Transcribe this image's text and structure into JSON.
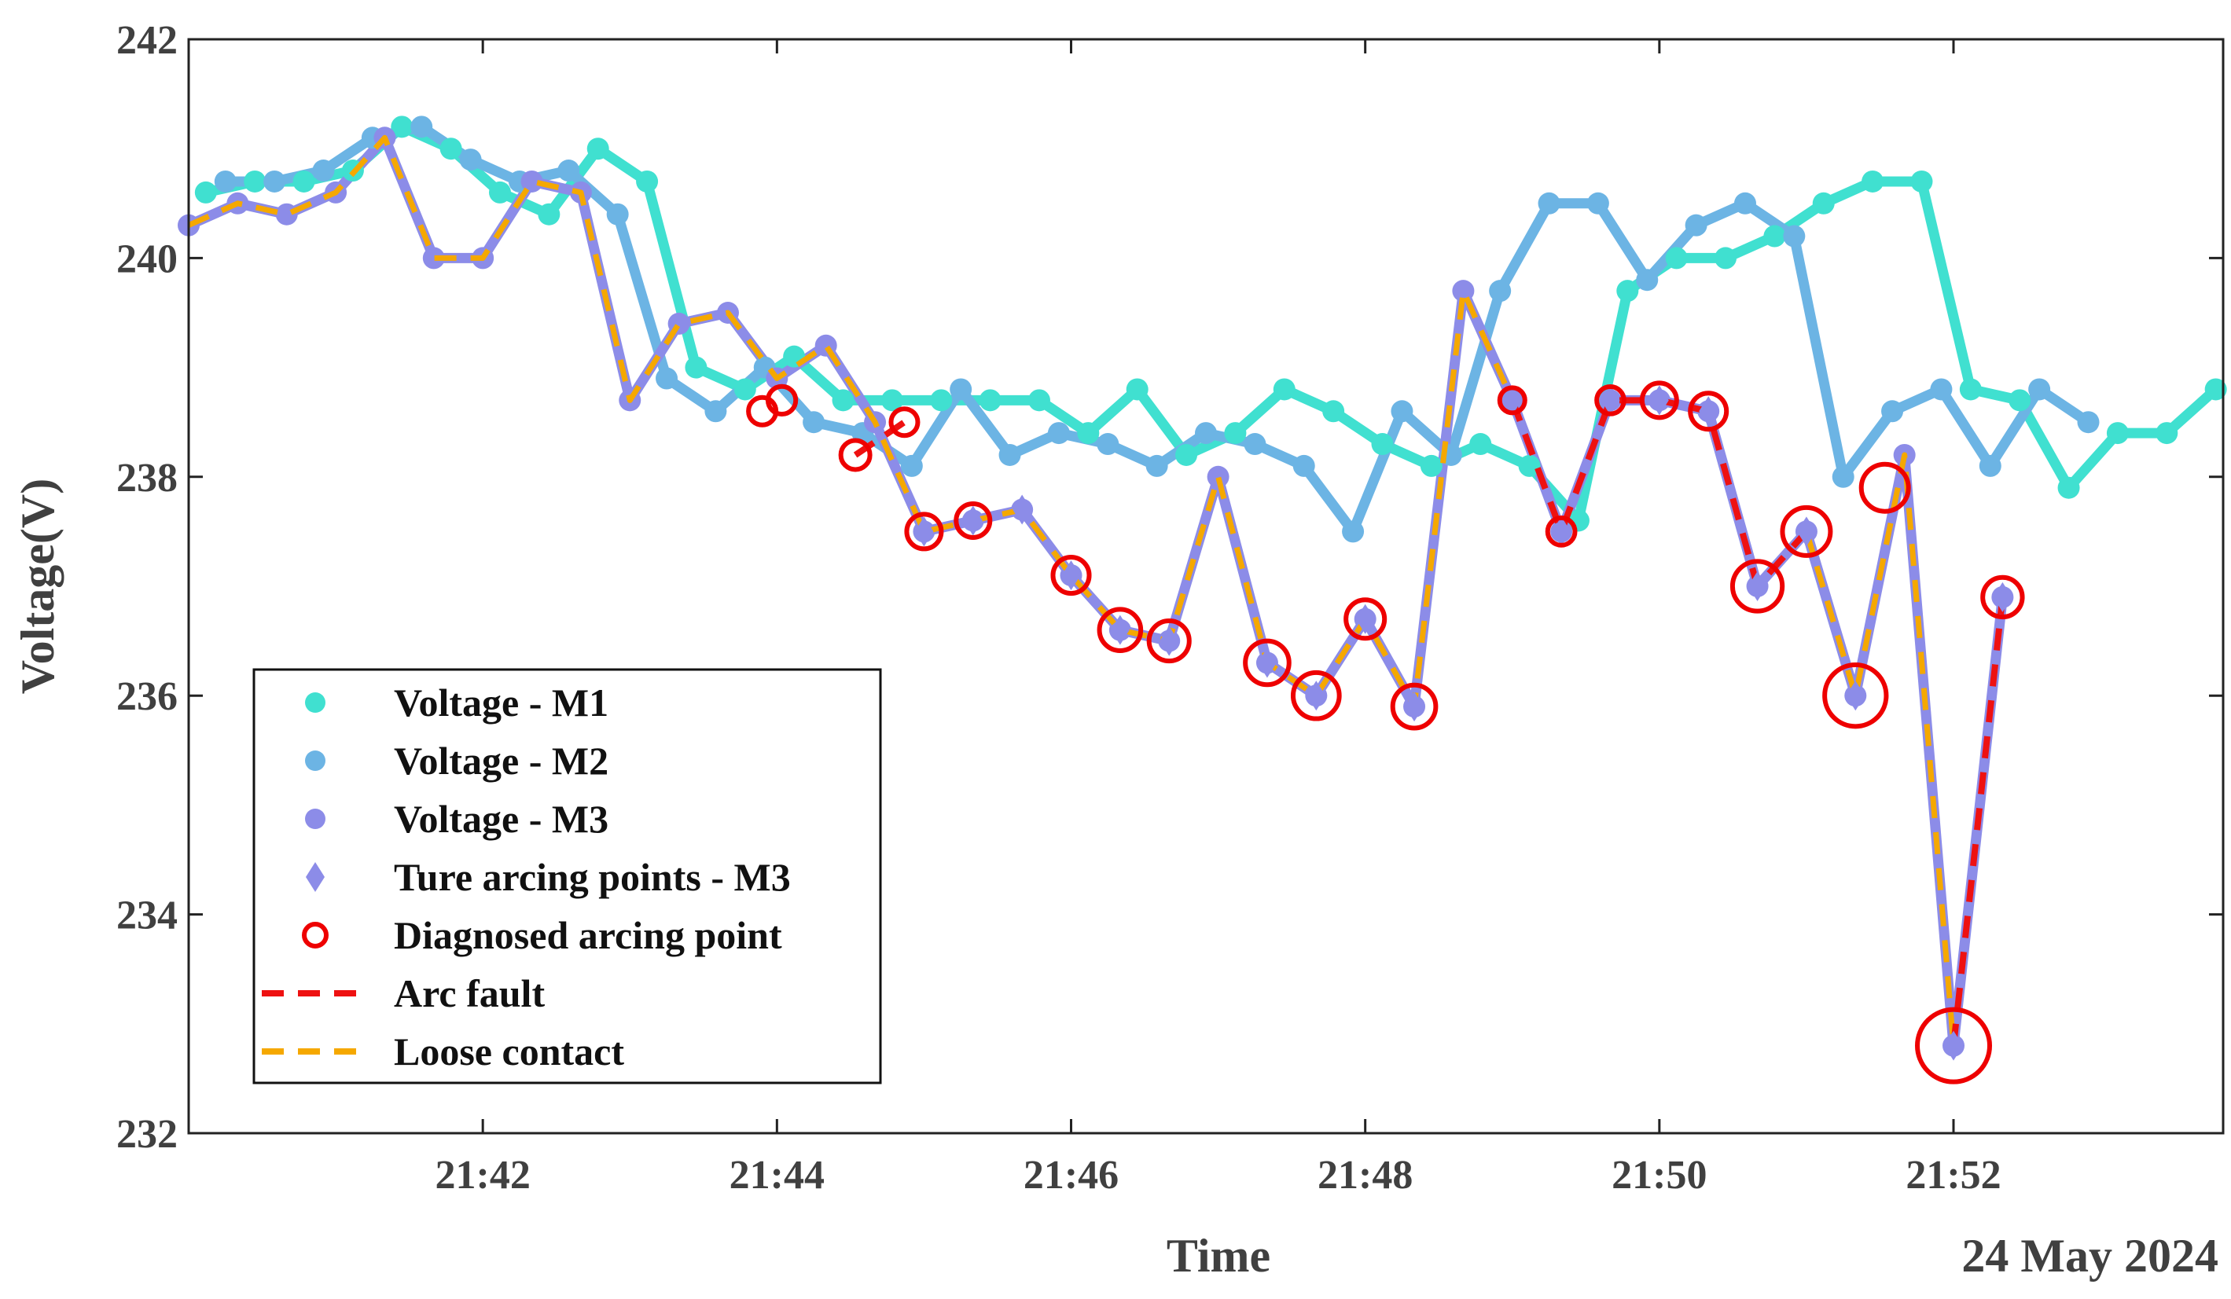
{
  "chart_data": {
    "type": "line",
    "xlabel": "Time",
    "ylabel": "Voltage(V)",
    "date_label": "24 May 2024",
    "xlim": [
      "21:40:00",
      "21:53:50"
    ],
    "ylim": [
      232,
      242
    ],
    "x_ticks": [
      "21:42",
      "21:44",
      "21:46",
      "21:48",
      "21:50",
      "21:52"
    ],
    "y_ticks": [
      232,
      234,
      236,
      238,
      240,
      242
    ],
    "grid": false,
    "legend_placement": "lower-left",
    "colors": {
      "m1": "#40e0d0",
      "m2": "#6cb4e4",
      "m3": "#8c8ce8",
      "diagnosed": "#ee0000",
      "arc_fault": "#ee1111",
      "loose_contact": "#f5a800",
      "axis": "#222222",
      "text": "#404040"
    },
    "legend": [
      {
        "label": "Voltage - M1",
        "marker": "dot",
        "color": "#40e0d0"
      },
      {
        "label": "Voltage - M2",
        "marker": "dot",
        "color": "#6cb4e4"
      },
      {
        "label": "Voltage - M3",
        "marker": "dot",
        "color": "#8c8ce8"
      },
      {
        "label": "Ture arcing points - M3",
        "marker": "diamond",
        "color": "#8c8ce8"
      },
      {
        "label": "Diagnosed arcing point",
        "marker": "circle",
        "color": "#ee0000"
      },
      {
        "label": "Arc  fault",
        "marker": "dash",
        "color": "#ee1111"
      },
      {
        "label": "Loose contact",
        "marker": "dash",
        "color": "#f5a800"
      }
    ],
    "series": [
      {
        "name": "Voltage - M1",
        "points": [
          [
            "21:40:07",
            240.6
          ],
          [
            "21:40:27",
            240.7
          ],
          [
            "21:40:47",
            240.7
          ],
          [
            "21:41:07",
            240.8
          ],
          [
            "21:41:27",
            241.2
          ],
          [
            "21:41:47",
            241.0
          ],
          [
            "21:42:07",
            240.6
          ],
          [
            "21:42:27",
            240.4
          ],
          [
            "21:42:47",
            241.0
          ],
          [
            "21:43:07",
            240.7
          ],
          [
            "21:43:27",
            239.0
          ],
          [
            "21:43:47",
            238.8
          ],
          [
            "21:44:07",
            239.1
          ],
          [
            "21:44:27",
            238.7
          ],
          [
            "21:44:47",
            238.7
          ],
          [
            "21:45:07",
            238.7
          ],
          [
            "21:45:27",
            238.7
          ],
          [
            "21:45:47",
            238.7
          ],
          [
            "21:46:07",
            238.4
          ],
          [
            "21:46:27",
            238.8
          ],
          [
            "21:46:47",
            238.2
          ],
          [
            "21:47:07",
            238.4
          ],
          [
            "21:47:27",
            238.8
          ],
          [
            "21:47:47",
            238.6
          ],
          [
            "21:48:07",
            238.3
          ],
          [
            "21:48:27",
            238.1
          ],
          [
            "21:48:47",
            238.3
          ],
          [
            "21:49:07",
            238.1
          ],
          [
            "21:49:27",
            237.6
          ],
          [
            "21:49:47",
            239.7
          ],
          [
            "21:50:07",
            240.0
          ],
          [
            "21:50:27",
            240.0
          ],
          [
            "21:50:47",
            240.2
          ],
          [
            "21:51:07",
            240.5
          ],
          [
            "21:51:27",
            240.7
          ],
          [
            "21:51:47",
            240.7
          ],
          [
            "21:52:07",
            238.8
          ],
          [
            "21:52:27",
            238.7
          ],
          [
            "21:52:47",
            237.9
          ],
          [
            "21:53:07",
            238.4
          ],
          [
            "21:53:27",
            238.4
          ],
          [
            "21:53:47",
            238.8
          ]
        ]
      },
      {
        "name": "Voltage - M2",
        "points": [
          [
            "21:40:15",
            240.7
          ],
          [
            "21:40:35",
            240.7
          ],
          [
            "21:40:55",
            240.8
          ],
          [
            "21:41:15",
            241.1
          ],
          [
            "21:41:35",
            241.2
          ],
          [
            "21:41:55",
            240.9
          ],
          [
            "21:42:15",
            240.7
          ],
          [
            "21:42:35",
            240.8
          ],
          [
            "21:42:55",
            240.4
          ],
          [
            "21:43:15",
            238.9
          ],
          [
            "21:43:35",
            238.6
          ],
          [
            "21:43:55",
            239.0
          ],
          [
            "21:44:15",
            238.5
          ],
          [
            "21:44:35",
            238.4
          ],
          [
            "21:44:55",
            238.1
          ],
          [
            "21:45:15",
            238.8
          ],
          [
            "21:45:35",
            238.2
          ],
          [
            "21:45:55",
            238.4
          ],
          [
            "21:46:15",
            238.3
          ],
          [
            "21:46:35",
            238.1
          ],
          [
            "21:46:55",
            238.4
          ],
          [
            "21:47:15",
            238.3
          ],
          [
            "21:47:35",
            238.1
          ],
          [
            "21:47:55",
            237.5
          ],
          [
            "21:48:15",
            238.6
          ],
          [
            "21:48:35",
            238.2
          ],
          [
            "21:48:55",
            239.7
          ],
          [
            "21:49:15",
            240.5
          ],
          [
            "21:49:35",
            240.5
          ],
          [
            "21:49:55",
            239.8
          ],
          [
            "21:50:15",
            240.3
          ],
          [
            "21:50:35",
            240.5
          ],
          [
            "21:50:55",
            240.2
          ],
          [
            "21:51:15",
            238.0
          ],
          [
            "21:51:35",
            238.6
          ],
          [
            "21:51:55",
            238.8
          ],
          [
            "21:52:15",
            238.1
          ],
          [
            "21:52:35",
            238.8
          ],
          [
            "21:52:55",
            238.5
          ]
        ]
      },
      {
        "name": "Voltage - M3",
        "points": [
          [
            "21:40:00",
            240.3
          ],
          [
            "21:40:20",
            240.5
          ],
          [
            "21:40:40",
            240.4
          ],
          [
            "21:41:00",
            240.6
          ],
          [
            "21:41:20",
            241.1
          ],
          [
            "21:41:40",
            240.0
          ],
          [
            "21:42:00",
            240.0
          ],
          [
            "21:42:20",
            240.7
          ],
          [
            "21:42:40",
            240.6
          ],
          [
            "21:43:00",
            238.7
          ],
          [
            "21:43:20",
            239.4
          ],
          [
            "21:43:40",
            239.5
          ],
          [
            "21:44:00",
            238.9
          ],
          [
            "21:44:20",
            239.2
          ],
          [
            "21:44:40",
            238.5
          ],
          [
            "21:45:00",
            237.5
          ],
          [
            "21:45:20",
            237.6
          ],
          [
            "21:45:40",
            237.7
          ],
          [
            "21:46:00",
            237.1
          ],
          [
            "21:46:20",
            236.6
          ],
          [
            "21:46:40",
            236.5
          ],
          [
            "21:47:00",
            238.0
          ],
          [
            "21:47:20",
            236.3
          ],
          [
            "21:47:40",
            236.0
          ],
          [
            "21:48:00",
            236.7
          ],
          [
            "21:48:20",
            235.9
          ],
          [
            "21:48:40",
            239.7
          ],
          [
            "21:49:00",
            238.7
          ],
          [
            "21:49:20",
            237.5
          ],
          [
            "21:49:40",
            238.7
          ],
          [
            "21:50:00",
            238.7
          ],
          [
            "21:50:20",
            238.6
          ],
          [
            "21:50:40",
            237.0
          ],
          [
            "21:51:00",
            237.5
          ],
          [
            "21:51:20",
            236.0
          ],
          [
            "21:51:40",
            238.2
          ],
          [
            "21:52:00",
            232.8
          ],
          [
            "21:52:20",
            236.9
          ]
        ]
      }
    ],
    "true_arcing_points_m3": [
      [
        "21:45:00",
        237.5
      ],
      [
        "21:45:20",
        237.6
      ],
      [
        "21:45:40",
        237.7
      ],
      [
        "21:46:00",
        237.1
      ],
      [
        "21:46:20",
        236.6
      ],
      [
        "21:46:40",
        236.5
      ],
      [
        "21:47:20",
        236.3
      ],
      [
        "21:47:40",
        236.0
      ],
      [
        "21:48:00",
        236.7
      ],
      [
        "21:48:20",
        235.9
      ],
      [
        "21:49:00",
        238.7
      ],
      [
        "21:49:20",
        237.5
      ],
      [
        "21:49:40",
        238.7
      ],
      [
        "21:50:00",
        238.7
      ],
      [
        "21:50:20",
        238.6
      ],
      [
        "21:50:40",
        237.0
      ],
      [
        "21:51:00",
        237.5
      ],
      [
        "21:51:20",
        236.0
      ],
      [
        "21:52:00",
        232.8
      ],
      [
        "21:52:20",
        236.9
      ]
    ],
    "diagnosed_arcing_points": [
      [
        "21:43:54",
        238.6
      ],
      [
        "21:44:02",
        238.7
      ],
      [
        "21:44:32",
        238.2
      ],
      [
        "21:44:52",
        238.5
      ],
      [
        "21:45:00",
        237.5
      ],
      [
        "21:45:20",
        237.6
      ],
      [
        "21:46:00",
        237.1
      ],
      [
        "21:46:20",
        236.6
      ],
      [
        "21:46:40",
        236.5
      ],
      [
        "21:47:20",
        236.3
      ],
      [
        "21:47:40",
        236.0
      ],
      [
        "21:48:00",
        236.7
      ],
      [
        "21:48:20",
        235.9
      ],
      [
        "21:49:00",
        238.7
      ],
      [
        "21:49:20",
        237.5
      ],
      [
        "21:49:40",
        238.7
      ],
      [
        "21:50:00",
        238.7
      ],
      [
        "21:50:20",
        238.6
      ],
      [
        "21:50:40",
        237.0
      ],
      [
        "21:51:00",
        237.5
      ],
      [
        "21:51:20",
        236.0
      ],
      [
        "21:51:32",
        237.9
      ],
      [
        "21:52:00",
        232.8
      ],
      [
        "21:52:20",
        236.9
      ]
    ],
    "arc_fault_segments": [
      [
        [
          "21:44:32",
          238.2
        ],
        [
          "21:44:52",
          238.5
        ]
      ],
      [
        [
          "21:49:00",
          238.7
        ],
        [
          "21:49:20",
          237.5
        ],
        [
          "21:49:40",
          238.7
        ],
        [
          "21:50:00",
          238.7
        ],
        [
          "21:50:20",
          238.6
        ],
        [
          "21:50:40",
          237.0
        ],
        [
          "21:51:00",
          237.5
        ]
      ],
      [
        [
          "21:52:00",
          232.8
        ],
        [
          "21:52:20",
          236.9
        ]
      ]
    ],
    "loose_contact_segments": [
      [
        [
          "21:40:00",
          240.3
        ],
        [
          "21:40:20",
          240.5
        ],
        [
          "21:40:40",
          240.4
        ],
        [
          "21:41:00",
          240.6
        ],
        [
          "21:41:20",
          241.1
        ],
        [
          "21:41:40",
          240.0
        ],
        [
          "21:42:00",
          240.0
        ],
        [
          "21:42:20",
          240.7
        ],
        [
          "21:42:40",
          240.6
        ],
        [
          "21:43:00",
          238.7
        ],
        [
          "21:43:20",
          239.4
        ],
        [
          "21:43:40",
          239.5
        ],
        [
          "21:44:00",
          238.9
        ],
        [
          "21:44:20",
          239.2
        ],
        [
          "21:44:40",
          238.5
        ],
        [
          "21:45:00",
          237.5
        ],
        [
          "21:45:20",
          237.6
        ],
        [
          "21:45:40",
          237.7
        ],
        [
          "21:46:00",
          237.1
        ],
        [
          "21:46:20",
          236.6
        ],
        [
          "21:46:40",
          236.5
        ],
        [
          "21:47:00",
          238.0
        ],
        [
          "21:47:20",
          236.3
        ],
        [
          "21:47:40",
          236.0
        ],
        [
          "21:48:00",
          236.7
        ],
        [
          "21:48:20",
          235.9
        ],
        [
          "21:48:40",
          239.7
        ],
        [
          "21:49:00",
          238.7
        ]
      ],
      [
        [
          "21:51:00",
          237.5
        ],
        [
          "21:51:20",
          236.0
        ],
        [
          "21:51:40",
          238.2
        ],
        [
          "21:52:00",
          232.8
        ]
      ]
    ]
  }
}
